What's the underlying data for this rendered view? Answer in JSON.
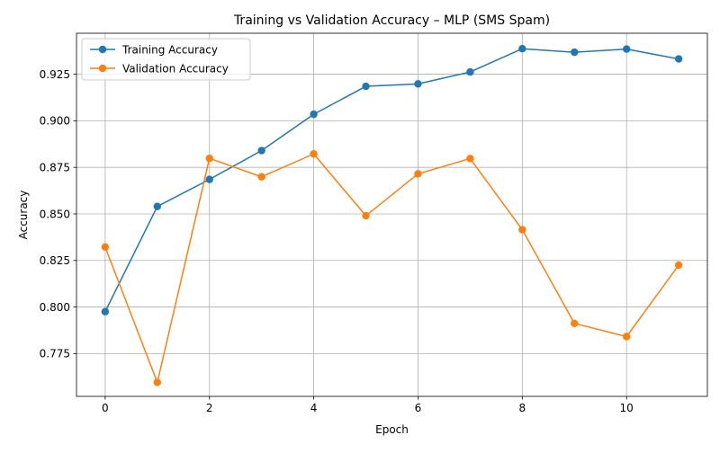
{
  "chart_data": {
    "type": "line",
    "title": "Training vs Validation Accuracy – MLP (SMS Spam)",
    "xlabel": "Epoch",
    "ylabel": "Accuracy",
    "x": [
      0,
      1,
      2,
      3,
      4,
      5,
      6,
      7,
      8,
      9,
      10,
      11
    ],
    "xlim": [
      -0.55,
      11.55
    ],
    "ylim": [
      0.752,
      0.947
    ],
    "xticks": [
      0,
      2,
      4,
      6,
      8,
      10
    ],
    "yticks": [
      0.775,
      0.8,
      0.825,
      0.85,
      0.875,
      0.9,
      0.925
    ],
    "xtick_labels": [
      "0",
      "2",
      "4",
      "6",
      "8",
      "10"
    ],
    "ytick_labels": [
      "0.775",
      "0.800",
      "0.825",
      "0.850",
      "0.875",
      "0.900",
      "0.925"
    ],
    "grid": true,
    "legend_position": "upper-left",
    "markers": "circle",
    "series": [
      {
        "name": "Training Accuracy",
        "color": "#1f77b4",
        "values": [
          0.7975,
          0.854,
          0.8685,
          0.884,
          0.9035,
          0.9185,
          0.9198,
          0.9262,
          0.9387,
          0.9368,
          0.9385,
          0.9332
        ]
      },
      {
        "name": "Validation Accuracy",
        "color": "#ff7f0e",
        "values": [
          0.8322,
          0.7595,
          0.8798,
          0.8699,
          0.8822,
          0.849,
          0.8715,
          0.8797,
          0.8415,
          0.7912,
          0.7841,
          0.8225
        ]
      }
    ]
  }
}
